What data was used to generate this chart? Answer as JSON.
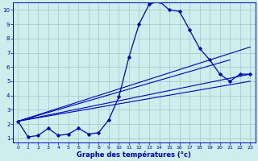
{
  "xlabel": "Graphe des températures (°c)",
  "background_color": "#cceeed",
  "grid_color": "#aacccc",
  "line_color": "#0000bb",
  "xlim_min": -0.5,
  "xlim_max": 23.5,
  "ylim_min": 0.7,
  "ylim_max": 10.5,
  "yticks": [
    1,
    2,
    3,
    4,
    5,
    6,
    7,
    8,
    9,
    10
  ],
  "xticks": [
    0,
    1,
    2,
    3,
    4,
    5,
    6,
    7,
    8,
    9,
    10,
    11,
    12,
    13,
    14,
    15,
    16,
    17,
    18,
    19,
    20,
    21,
    22,
    23
  ],
  "series1_x": [
    0,
    1,
    2,
    3,
    4,
    5,
    6,
    7,
    8,
    9,
    10,
    11,
    12,
    13,
    14,
    15,
    16,
    17,
    18,
    19,
    20,
    21,
    22,
    23
  ],
  "series1_y": [
    2.2,
    1.1,
    1.2,
    1.7,
    1.2,
    1.3,
    1.7,
    1.3,
    1.4,
    2.3,
    3.9,
    6.7,
    9.0,
    10.4,
    10.6,
    10.0,
    9.9,
    8.6,
    7.3,
    6.5,
    5.5,
    5.0,
    5.5,
    5.5
  ],
  "line1_x": [
    0,
    23
  ],
  "line1_y": [
    2.2,
    7.4
  ],
  "line2_x": [
    0,
    21
  ],
  "line2_y": [
    2.2,
    6.5
  ],
  "line3_x": [
    0,
    23
  ],
  "line3_y": [
    2.2,
    5.5
  ],
  "line4_x": [
    0,
    23
  ],
  "line4_y": [
    2.2,
    5.0
  ]
}
